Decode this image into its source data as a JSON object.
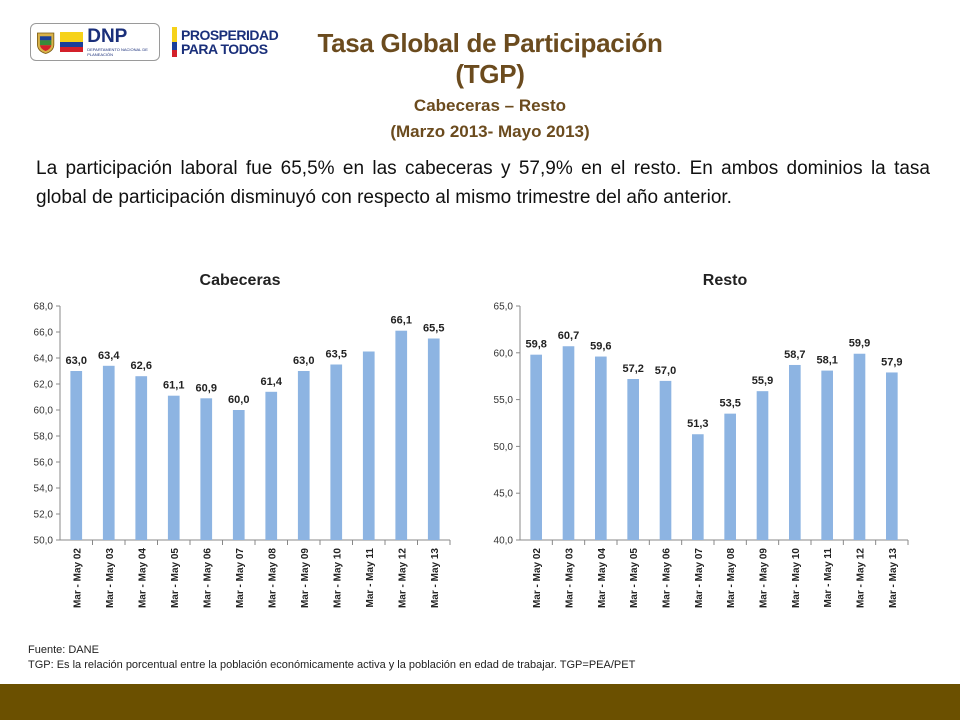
{
  "header": {
    "logo_dnp_text": "DNP",
    "logo_dnp_subtext": "DEPARTAMENTO NACIONAL DE PLANEACIÓN",
    "logo_prosperidad_line1": "PROSPERIDAD",
    "logo_prosperidad_line2": "PARA TODOS",
    "title": "Tasa Global de Participación (TGP)",
    "subtitle": "Cabeceras – Resto",
    "period": "(Marzo 2013- Mayo 2013)"
  },
  "paragraph": "La participación laboral fue 65,5% en las cabeceras y 57,9% en el resto. En ambos dominios la tasa global de participación disminuyó con respecto al mismo trimestre del año anterior.",
  "footer": {
    "source": "Fuente: DANE",
    "note": "TGP: Es la relación porcentual entre la población económicamente activa y la población en edad de trabajar. TGP=PEA/PET"
  },
  "colors": {
    "bar": "#8db4e2",
    "title": "#6b4b1e",
    "bottom_bar": "#6b5000"
  },
  "chart_data": [
    {
      "type": "bar",
      "title": "Cabeceras",
      "categories": [
        "Mar - May 02",
        "Mar - May 03",
        "Mar - May 04",
        "Mar - May 05",
        "Mar - May 06",
        "Mar - May 07",
        "Mar - May 08",
        "Mar - May 09",
        "Mar - May 10",
        "Mar - May 11",
        "Mar - May 12",
        "Mar - May 13"
      ],
      "values": [
        63.0,
        63.4,
        62.6,
        61.1,
        60.9,
        60.0,
        61.4,
        63.0,
        63.5,
        64.5,
        66.1,
        65.5
      ],
      "data_labels": [
        "63,0",
        "63,4",
        "62,6",
        "61,1",
        "60,9",
        "60,0",
        "61,4",
        "63,0",
        "63,5",
        "",
        "66,1",
        "65,5"
      ],
      "ylim": [
        50,
        68
      ],
      "yticks": [
        50,
        52,
        54,
        56,
        58,
        60,
        62,
        64,
        66,
        68
      ],
      "ytick_labels": [
        "50,0",
        "52,0",
        "54,0",
        "56,0",
        "58,0",
        "60,0",
        "62,0",
        "64,0",
        "66,0",
        "68,0"
      ],
      "grid": false,
      "legend": "none"
    },
    {
      "type": "bar",
      "title": "Resto",
      "categories": [
        "Mar - May 02",
        "Mar - May 03",
        "Mar - May 04",
        "Mar - May 05",
        "Mar - May 06",
        "Mar - May 07",
        "Mar - May 08",
        "Mar - May 09",
        "Mar - May 10",
        "Mar - May 11",
        "Mar - May 12",
        "Mar - May 13"
      ],
      "values": [
        59.8,
        60.7,
        59.6,
        57.2,
        57.0,
        51.3,
        53.5,
        55.9,
        58.7,
        58.1,
        59.9,
        57.9
      ],
      "data_labels": [
        "59,8",
        "60,7",
        "59,6",
        "57,2",
        "57,0",
        "51,3",
        "53,5",
        "55,9",
        "58,7",
        "58,1",
        "59,9",
        "57,9"
      ],
      "ylim": [
        40,
        65
      ],
      "yticks": [
        40,
        45,
        50,
        55,
        60,
        65
      ],
      "ytick_labels": [
        "40,0",
        "45,0",
        "50,0",
        "55,0",
        "60,0",
        "65,0"
      ],
      "grid": false,
      "legend": "none"
    }
  ]
}
